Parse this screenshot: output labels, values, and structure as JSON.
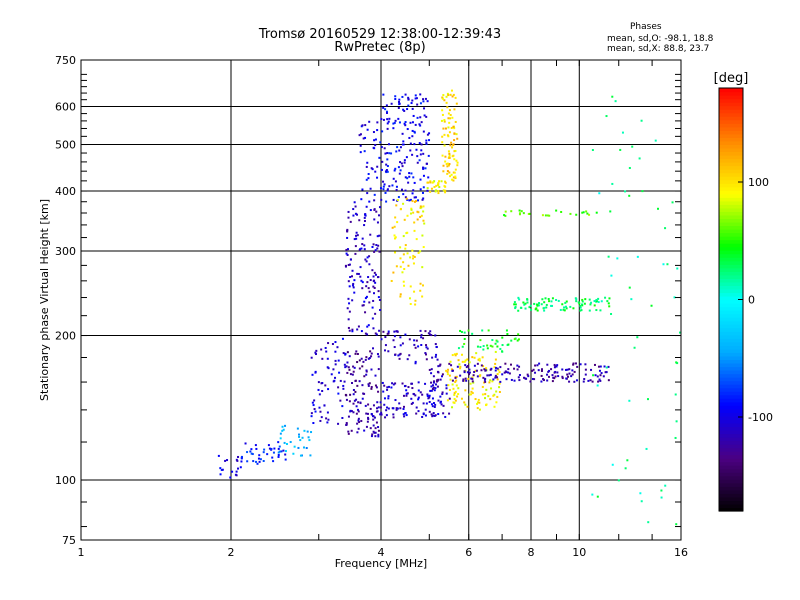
{
  "chart_data": {
    "type": "scatter",
    "title": "Tromsø 20160529 12:38:00-12:39:43",
    "subtitle": "RwPretec (8p)",
    "xlabel": "Frequency [MHz]",
    "ylabel": "Stationary phase Virtual Height [km]",
    "x_scale": "log",
    "y_scale": "log",
    "xlim": [
      1,
      16
    ],
    "ylim": [
      75,
      750
    ],
    "x_ticks": [
      1,
      2,
      4,
      6,
      8,
      10,
      16
    ],
    "y_ticks": [
      75,
      100,
      200,
      300,
      400,
      500,
      600,
      750
    ],
    "x_grid": [
      2,
      4,
      6,
      8,
      10
    ],
    "y_grid": [
      100,
      200,
      300,
      400,
      500,
      600
    ],
    "grid": true,
    "stats": {
      "heading": "Phases",
      "line1": "mean, sd,O: -98.1, 18.8",
      "line2": "mean, sd,X:  88.8, 23.7"
    },
    "colorbar": {
      "label": "[deg]",
      "range": [
        -180,
        180
      ],
      "ticks": [
        -100,
        0,
        100
      ],
      "colors": [
        "#000000",
        "#4b0082",
        "#0000ff",
        "#00aaff",
        "#00ffff",
        "#00ff00",
        "#ffff00",
        "#ff8800",
        "#ff0000"
      ]
    },
    "series": [
      {
        "x_range": [
          1.85,
          2.1
        ],
        "y_range": [
          100,
          114
        ],
        "phase": -100,
        "n": 18
      },
      {
        "x_range": [
          2.1,
          2.6
        ],
        "y_range": [
          108,
          120
        ],
        "phase": -85,
        "n": 40
      },
      {
        "x_range": [
          2.4,
          2.9
        ],
        "y_range": [
          112,
          130
        ],
        "phase": -40,
        "n": 30
      },
      {
        "x_range": [
          2.9,
          3.4
        ],
        "y_range": [
          130,
          200
        ],
        "phase": -105,
        "n": 70
      },
      {
        "x_range": [
          3.4,
          4.0
        ],
        "y_range": [
          123,
          148
        ],
        "phase": -120,
        "n": 70
      },
      {
        "x_range": [
          3.4,
          4.0
        ],
        "y_range": [
          150,
          190
        ],
        "phase": -125,
        "n": 60
      },
      {
        "x_range": [
          3.4,
          4.0
        ],
        "y_range": [
          200,
          380
        ],
        "phase": -110,
        "n": 140
      },
      {
        "x_range": [
          3.6,
          4.0
        ],
        "y_range": [
          380,
          560
        ],
        "phase": -100,
        "n": 40
      },
      {
        "x_range": [
          4.0,
          5.0
        ],
        "y_range": [
          380,
          640
        ],
        "phase": -95,
        "n": 180
      },
      {
        "x_range": [
          4.0,
          5.5
        ],
        "y_range": [
          135,
          160
        ],
        "phase": -110,
        "n": 120
      },
      {
        "x_range": [
          4.0,
          5.2
        ],
        "y_range": [
          175,
          205
        ],
        "phase": -115,
        "n": 60
      },
      {
        "x_range": [
          4.2,
          4.9
        ],
        "y_range": [
          230,
          390
        ],
        "phase": 100,
        "n": 80
      },
      {
        "x_range": [
          4.9,
          5.4
        ],
        "y_range": [
          395,
          420
        ],
        "phase": 95,
        "n": 30
      },
      {
        "x_range": [
          5.3,
          5.7
        ],
        "y_range": [
          420,
          650
        ],
        "phase": 105,
        "n": 90
      },
      {
        "x_range": [
          5.4,
          7.0
        ],
        "y_range": [
          140,
          185
        ],
        "phase": 95,
        "n": 110
      },
      {
        "x_range": [
          5.6,
          7.6
        ],
        "y_range": [
          185,
          205
        ],
        "phase": 40,
        "n": 40
      },
      {
        "x_range": [
          5.0,
          11.5
        ],
        "y_range": [
          160,
          175
        ],
        "phase": -120,
        "n": 180
      },
      {
        "x_range": [
          7.4,
          11.5
        ],
        "y_range": [
          225,
          240
        ],
        "phase": 30,
        "n": 90
      },
      {
        "x_range": [
          7.0,
          11.0
        ],
        "y_range": [
          355,
          365
        ],
        "phase": 60,
        "n": 25
      },
      {
        "x_range": [
          10.5,
          16.0
        ],
        "y_range": [
          80,
          650
        ],
        "phase": 20,
        "n": 60
      }
    ]
  }
}
